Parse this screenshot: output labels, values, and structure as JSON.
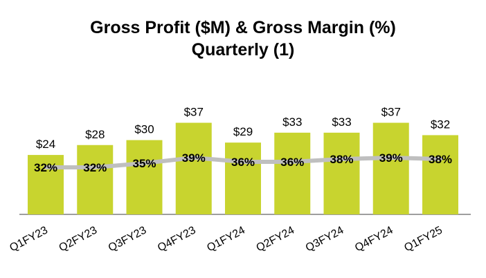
{
  "chart_data": {
    "type": "bar",
    "title": [
      "Gross Profit ($M) & Gross Margin (%)",
      "Quarterly (1)"
    ],
    "categories": [
      "Q1FY23",
      "Q2FY23",
      "Q3FY23",
      "Q4FY23",
      "Q1FY24",
      "Q2FY24",
      "Q3FY24",
      "Q4FY24",
      "Q1FY25"
    ],
    "series": [
      {
        "type": "bar",
        "values": [
          24,
          28,
          30,
          37,
          29,
          33,
          33,
          37,
          32
        ],
        "labels": [
          "$24",
          "$28",
          "$30",
          "$37",
          "$29",
          "$33",
          "$33",
          "$37",
          "$32"
        ],
        "color": "#c8d42f"
      },
      {
        "type": "line",
        "values": [
          32,
          32,
          35,
          39,
          36,
          36,
          38,
          39,
          38
        ],
        "labels": [
          "32%",
          "32%",
          "35%",
          "39%",
          "36%",
          "36%",
          "38%",
          "39%",
          "38%"
        ],
        "color": "#bfbfbf"
      }
    ],
    "grid": false,
    "legend": "none"
  }
}
